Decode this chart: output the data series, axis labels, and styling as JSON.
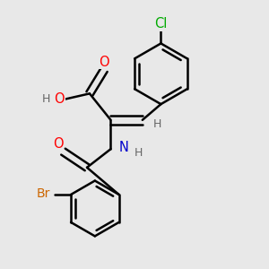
{
  "background_color": "#e8e8e8",
  "bond_color": "#000000",
  "bond_width": 1.8,
  "atom_colors": {
    "O": "#ff0000",
    "N": "#0000cc",
    "Br": "#cc6600",
    "Cl": "#00aa00",
    "H": "#666666",
    "C": "#000000"
  },
  "fig_w": 3.0,
  "fig_h": 3.0,
  "dpi": 100,
  "xlim": [
    0,
    10
  ],
  "ylim": [
    0,
    10
  ]
}
